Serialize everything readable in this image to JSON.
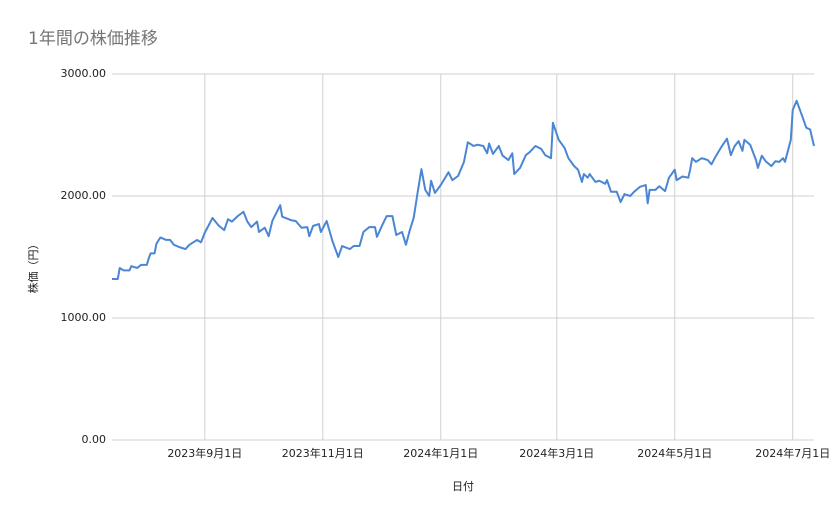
{
  "chart_data": {
    "type": "line",
    "title": "1年間の株価推移",
    "x_label": "日付",
    "y_label": "株価（円）",
    "color": "#4a86d4",
    "grid": true,
    "xlim": [
      "2023-07-15",
      "2024-07-12"
    ],
    "xticks": [
      {
        "value": "2023-09-01",
        "label": "2023年9月1日"
      },
      {
        "value": "2023-11-01",
        "label": "2023年11月1日"
      },
      {
        "value": "2024-01-01",
        "label": "2024年1月1日"
      },
      {
        "value": "2024-03-01",
        "label": "2024年3月1日"
      },
      {
        "value": "2024-05-01",
        "label": "2024年5月1日"
      },
      {
        "value": "2024-07-01",
        "label": "2024年7月1日"
      }
    ],
    "ylim": [
      0,
      3000
    ],
    "yticks": [
      {
        "value": 0,
        "label": "0.00"
      },
      {
        "value": 1000,
        "label": "1000.00"
      },
      {
        "value": 2000,
        "label": "2000.00"
      },
      {
        "value": 3000,
        "label": "3000.00"
      }
    ],
    "x": [
      "2023-07-15",
      "2023-07-18",
      "2023-07-19",
      "2023-07-21",
      "2023-07-24",
      "2023-07-25",
      "2023-07-28",
      "2023-07-30",
      "2023-08-02",
      "2023-08-03",
      "2023-08-04",
      "2023-08-06",
      "2023-08-07",
      "2023-08-09",
      "2023-08-12",
      "2023-08-14",
      "2023-08-16",
      "2023-08-19",
      "2023-08-22",
      "2023-08-24",
      "2023-08-28",
      "2023-08-30",
      "2023-09-01",
      "2023-09-05",
      "2023-09-08",
      "2023-09-11",
      "2023-09-13",
      "2023-09-15",
      "2023-09-18",
      "2023-09-21",
      "2023-09-23",
      "2023-09-25",
      "2023-09-28",
      "2023-09-29",
      "2023-10-02",
      "2023-10-04",
      "2023-10-06",
      "2023-10-10",
      "2023-10-11",
      "2023-10-16",
      "2023-10-18",
      "2023-10-21",
      "2023-10-24",
      "2023-10-25",
      "2023-10-27",
      "2023-10-30",
      "2023-10-31",
      "2023-11-03",
      "2023-11-06",
      "2023-11-09",
      "2023-11-11",
      "2023-11-15",
      "2023-11-17",
      "2023-11-20",
      "2023-11-22",
      "2023-11-25",
      "2023-11-28",
      "2023-11-29",
      "2023-12-02",
      "2023-12-04",
      "2023-12-07",
      "2023-12-09",
      "2023-12-12",
      "2023-12-14",
      "2023-12-16",
      "2023-12-18",
      "2023-12-20",
      "2023-12-22",
      "2023-12-24",
      "2023-12-26",
      "2023-12-27",
      "2023-12-29",
      "2024-01-01",
      "2024-01-05",
      "2024-01-07",
      "2024-01-10",
      "2024-01-13",
      "2024-01-15",
      "2024-01-18",
      "2024-01-20",
      "2024-01-23",
      "2024-01-25",
      "2024-01-26",
      "2024-01-28",
      "2024-01-31",
      "2024-02-02",
      "2024-02-05",
      "2024-02-07",
      "2024-02-08",
      "2024-02-11",
      "2024-02-14",
      "2024-02-16",
      "2024-02-19",
      "2024-02-22",
      "2024-02-24",
      "2024-02-27",
      "2024-02-28",
      "2024-03-02",
      "2024-03-05",
      "2024-03-07",
      "2024-03-10",
      "2024-03-12",
      "2024-03-14",
      "2024-03-15",
      "2024-03-17",
      "2024-03-18",
      "2024-03-21",
      "2024-03-23",
      "2024-03-26",
      "2024-03-27",
      "2024-03-29",
      "2024-04-01",
      "2024-04-03",
      "2024-04-05",
      "2024-04-08",
      "2024-04-10",
      "2024-04-13",
      "2024-04-16",
      "2024-04-17",
      "2024-04-18",
      "2024-04-21",
      "2024-04-23",
      "2024-04-26",
      "2024-04-28",
      "2024-05-01",
      "2024-05-02",
      "2024-05-05",
      "2024-05-08",
      "2024-05-09",
      "2024-05-10",
      "2024-05-12",
      "2024-05-15",
      "2024-05-18",
      "2024-05-20",
      "2024-05-22",
      "2024-05-25",
      "2024-05-28",
      "2024-05-30",
      "2024-06-01",
      "2024-06-03",
      "2024-06-05",
      "2024-06-06",
      "2024-06-09",
      "2024-06-12",
      "2024-06-13",
      "2024-06-15",
      "2024-06-17",
      "2024-06-20",
      "2024-06-22",
      "2024-06-24",
      "2024-06-26",
      "2024-06-27",
      "2024-06-30",
      "2024-07-01",
      "2024-07-03",
      "2024-07-06",
      "2024-07-08",
      "2024-07-10",
      "2024-07-12"
    ],
    "values": [
      1320,
      1320,
      1410,
      1390,
      1390,
      1425,
      1410,
      1435,
      1435,
      1490,
      1530,
      1530,
      1610,
      1660,
      1640,
      1640,
      1600,
      1580,
      1565,
      1600,
      1640,
      1620,
      1700,
      1820,
      1760,
      1720,
      1810,
      1790,
      1835,
      1870,
      1790,
      1745,
      1790,
      1705,
      1740,
      1670,
      1800,
      1925,
      1830,
      1800,
      1795,
      1740,
      1745,
      1670,
      1755,
      1770,
      1705,
      1795,
      1630,
      1500,
      1590,
      1565,
      1590,
      1590,
      1705,
      1745,
      1745,
      1665,
      1770,
      1835,
      1835,
      1680,
      1705,
      1600,
      1720,
      1820,
      2025,
      2220,
      2050,
      2000,
      2125,
      2025,
      2090,
      2195,
      2130,
      2165,
      2280,
      2440,
      2410,
      2420,
      2410,
      2350,
      2430,
      2345,
      2410,
      2330,
      2295,
      2350,
      2180,
      2230,
      2335,
      2360,
      2410,
      2385,
      2335,
      2310,
      2600,
      2460,
      2395,
      2310,
      2245,
      2215,
      2115,
      2180,
      2150,
      2180,
      2115,
      2125,
      2100,
      2130,
      2035,
      2035,
      1950,
      2015,
      2000,
      2035,
      2075,
      2090,
      1940,
      2050,
      2050,
      2080,
      2040,
      2150,
      2215,
      2130,
      2160,
      2150,
      2220,
      2310,
      2280,
      2310,
      2295,
      2260,
      2320,
      2400,
      2470,
      2335,
      2410,
      2450,
      2370,
      2460,
      2420,
      2295,
      2230,
      2330,
      2285,
      2245,
      2285,
      2280,
      2310,
      2280,
      2460,
      2705,
      2780,
      2650,
      2560,
      2545,
      2410
    ]
  }
}
